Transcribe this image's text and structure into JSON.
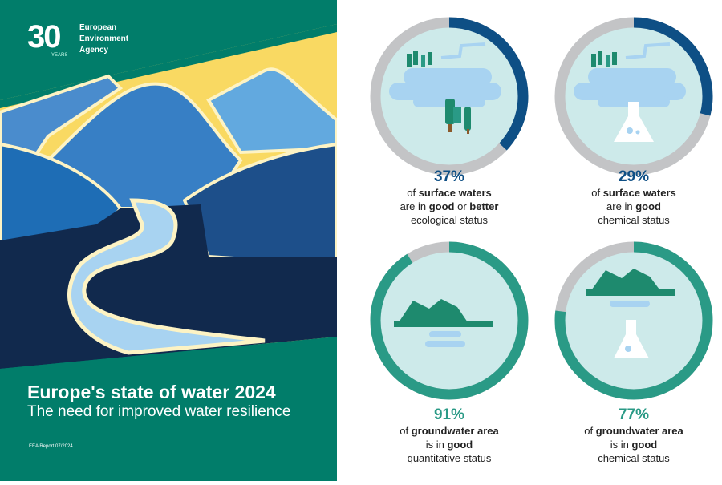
{
  "cover": {
    "logo_number": "30",
    "logo_years": "YEARS",
    "agency_lines": [
      "European",
      "Environment",
      "Agency"
    ],
    "title": "Europe's state of water 2024",
    "subtitle": "The need for improved water resilience",
    "report_id": "EEA Report 07/2024",
    "colors": {
      "green": "#017d6a",
      "yellow": "#f9d962",
      "navy": "#11294d"
    }
  },
  "stats": [
    {
      "percent": "37%",
      "value": 37,
      "ring_color": "#0e4f85",
      "lines": [
        [
          "of ",
          "surface waters",
          ""
        ],
        [
          "are in ",
          "good",
          " or ",
          "better"
        ],
        [
          "ecological status"
        ]
      ]
    },
    {
      "percent": "29%",
      "value": 29,
      "ring_color": "#0e4f85",
      "lines": [
        [
          "of ",
          "surface waters",
          ""
        ],
        [
          "are in ",
          "good",
          ""
        ],
        [
          "chemical status"
        ]
      ]
    },
    {
      "percent": "91%",
      "value": 91,
      "ring_color": "#2a9a86",
      "lines": [
        [
          "of ",
          "groundwater area",
          ""
        ],
        [
          "is in ",
          "good",
          ""
        ],
        [
          "quantitative status"
        ]
      ]
    },
    {
      "percent": "77%",
      "value": 77,
      "ring_color": "#2a9a86",
      "lines": [
        [
          "of ",
          "groundwater area",
          ""
        ],
        [
          "is in ",
          "good",
          ""
        ],
        [
          "chemical status"
        ]
      ]
    }
  ]
}
